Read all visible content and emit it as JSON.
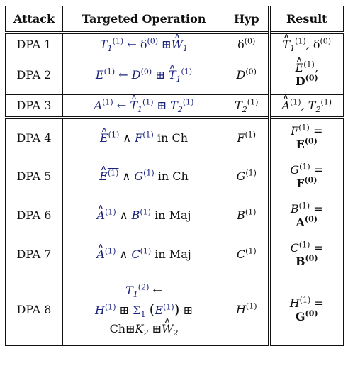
{
  "table": {
    "headers": [
      "Attack",
      "Targeted Operation",
      "Hyp",
      "Result"
    ],
    "rows": [
      {
        "attack": "DPA 1",
        "op": "T₁⁽¹⁾ ← δ⁽⁰⁾ ⊞ Ŵ₁",
        "hyp": "δ⁽⁰⁾",
        "result": "T̂₁⁽¹⁾, δ⁽⁰⁾"
      },
      {
        "attack": "DPA 2",
        "op": "E⁽¹⁾ ← D⁽⁰⁾ ⊞ T̂₁⁽¹⁾",
        "hyp": "D⁽⁰⁾",
        "result": "Ê⁽¹⁾, D⁽⁰⁾"
      },
      {
        "attack": "DPA 3",
        "op": "A⁽¹⁾ ← T̂₁⁽¹⁾ ⊞ T₂⁽¹⁾",
        "hyp": "T₂⁽¹⁾",
        "result": "Â⁽¹⁾, T₂⁽¹⁾"
      },
      {
        "attack": "DPA 4",
        "op": "Ê⁽¹⁾ ∧ F⁽¹⁾ in Ch",
        "hyp": "F⁽¹⁾",
        "result": "F⁽¹⁾ = E⁽⁰⁾"
      },
      {
        "attack": "DPA 5",
        "op": "¬Ê⁽¹⁾ ∧ G⁽¹⁾ in Ch",
        "hyp": "G⁽¹⁾",
        "result": "G⁽¹⁾ = F⁽⁰⁾"
      },
      {
        "attack": "DPA 6",
        "op": "Â⁽¹⁾ ∧ B⁽¹⁾ in Maj",
        "hyp": "B⁽¹⁾",
        "result": "B⁽¹⁾ = A⁽⁰⁾"
      },
      {
        "attack": "DPA 7",
        "op": "Â⁽¹⁾ ∧ C⁽¹⁾ in Maj",
        "hyp": "C⁽¹⁾",
        "result": "C⁽¹⁾ = B⁽⁰⁾"
      },
      {
        "attack": "DPA 8",
        "op": "T₁⁽²⁾ ← H⁽¹⁾ ⊞ Σ₁(E⁽¹⁾) ⊞ Ch ⊞ K₂ ⊞ Ŵ₂",
        "hyp": "H⁽¹⁾",
        "result": "H⁽¹⁾ = G⁽⁰⁾"
      }
    ]
  }
}
